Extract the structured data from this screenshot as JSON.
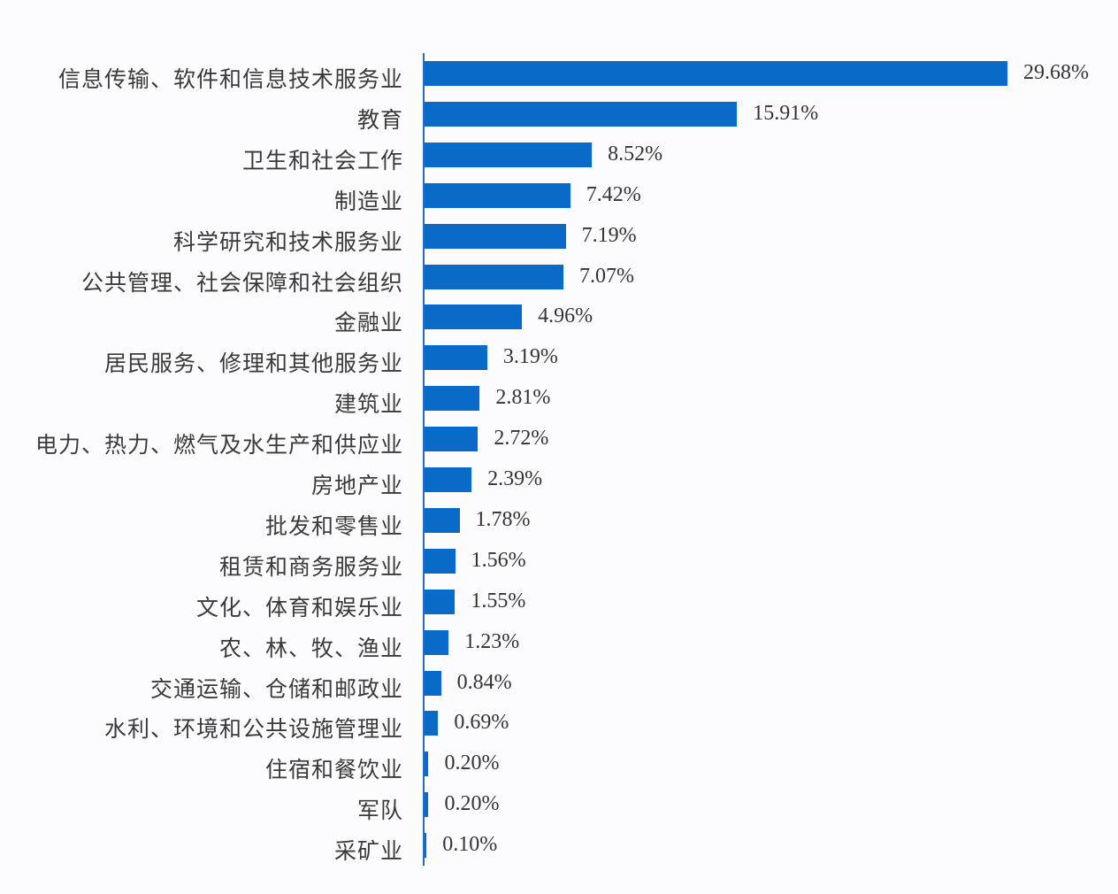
{
  "chart_data": {
    "type": "bar",
    "orientation": "horizontal",
    "title": "",
    "xlabel": "",
    "ylabel": "",
    "bar_color": "#0a6ac8",
    "grid": false,
    "legend": null,
    "value_suffix": "%",
    "categories": [
      "信息传输、软件和信息技术服务业",
      "教育",
      "卫生和社会工作",
      "制造业",
      "科学研究和技术服务业",
      "公共管理、社会保障和社会组织",
      "金融业",
      "居民服务、修理和其他服务业",
      "建筑业",
      "电力、热力、燃气及水生产和供应业",
      "房地产业",
      "批发和零售业",
      "租赁和商务服务业",
      "文化、体育和娱乐业",
      "农、林、牧、渔业",
      "交通运输、仓储和邮政业",
      "水利、环境和公共设施管理业",
      "住宿和餐饮业",
      "军队",
      "采矿业"
    ],
    "values": [
      29.68,
      15.91,
      8.52,
      7.42,
      7.19,
      7.07,
      4.96,
      3.19,
      2.81,
      2.72,
      2.39,
      1.78,
      1.56,
      1.55,
      1.23,
      0.84,
      0.69,
      0.2,
      0.2,
      0.1
    ],
    "value_labels": [
      "29.68%",
      "15.91%",
      "8.52%",
      "7.42%",
      "7.19%",
      "7.07%",
      "4.96%",
      "3.19%",
      "2.81%",
      "2.72%",
      "2.39%",
      "1.78%",
      "1.56%",
      "1.55%",
      "1.23%",
      "0.84%",
      "0.69%",
      "0.20%",
      "0.20%",
      "0.10%"
    ]
  }
}
